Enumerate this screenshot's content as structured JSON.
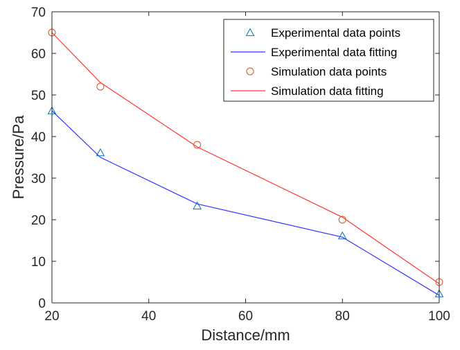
{
  "chart_data": {
    "type": "line",
    "xlabel": "Distance/mm",
    "ylabel": "Pressure/Pa",
    "xlim": [
      20,
      100
    ],
    "ylim": [
      0,
      70
    ],
    "xticks": [
      20,
      40,
      60,
      80,
      100
    ],
    "yticks": [
      0,
      10,
      20,
      30,
      40,
      50,
      60,
      70
    ],
    "grid": false,
    "legend_position": "top-right",
    "colors": {
      "experimental": "#0072BD",
      "experimental_fit": "#3333ff",
      "simulation": "#D95319",
      "simulation_fit": "#ff3333"
    },
    "series": [
      {
        "name": "Experimental data points",
        "style": "markers",
        "marker": "triangle",
        "x": [
          20,
          30,
          50,
          80,
          100
        ],
        "y": [
          46.2,
          36.1,
          23.3,
          16.1,
          2.2
        ]
      },
      {
        "name": "Experimental data fitting",
        "style": "line",
        "x": [
          20,
          30,
          50,
          80,
          100
        ],
        "y": [
          46.2,
          35.0,
          23.8,
          15.8,
          1.8
        ]
      },
      {
        "name": "Simulation data points",
        "style": "markers",
        "marker": "circle",
        "x": [
          20,
          30,
          50,
          80,
          100
        ],
        "y": [
          65.0,
          52.0,
          38.0,
          20.0,
          5.0
        ]
      },
      {
        "name": "Simulation data fitting",
        "style": "line",
        "x": [
          20,
          30,
          50,
          80,
          100
        ],
        "y": [
          65.0,
          53.0,
          37.5,
          20.6,
          4.6
        ]
      }
    ]
  }
}
